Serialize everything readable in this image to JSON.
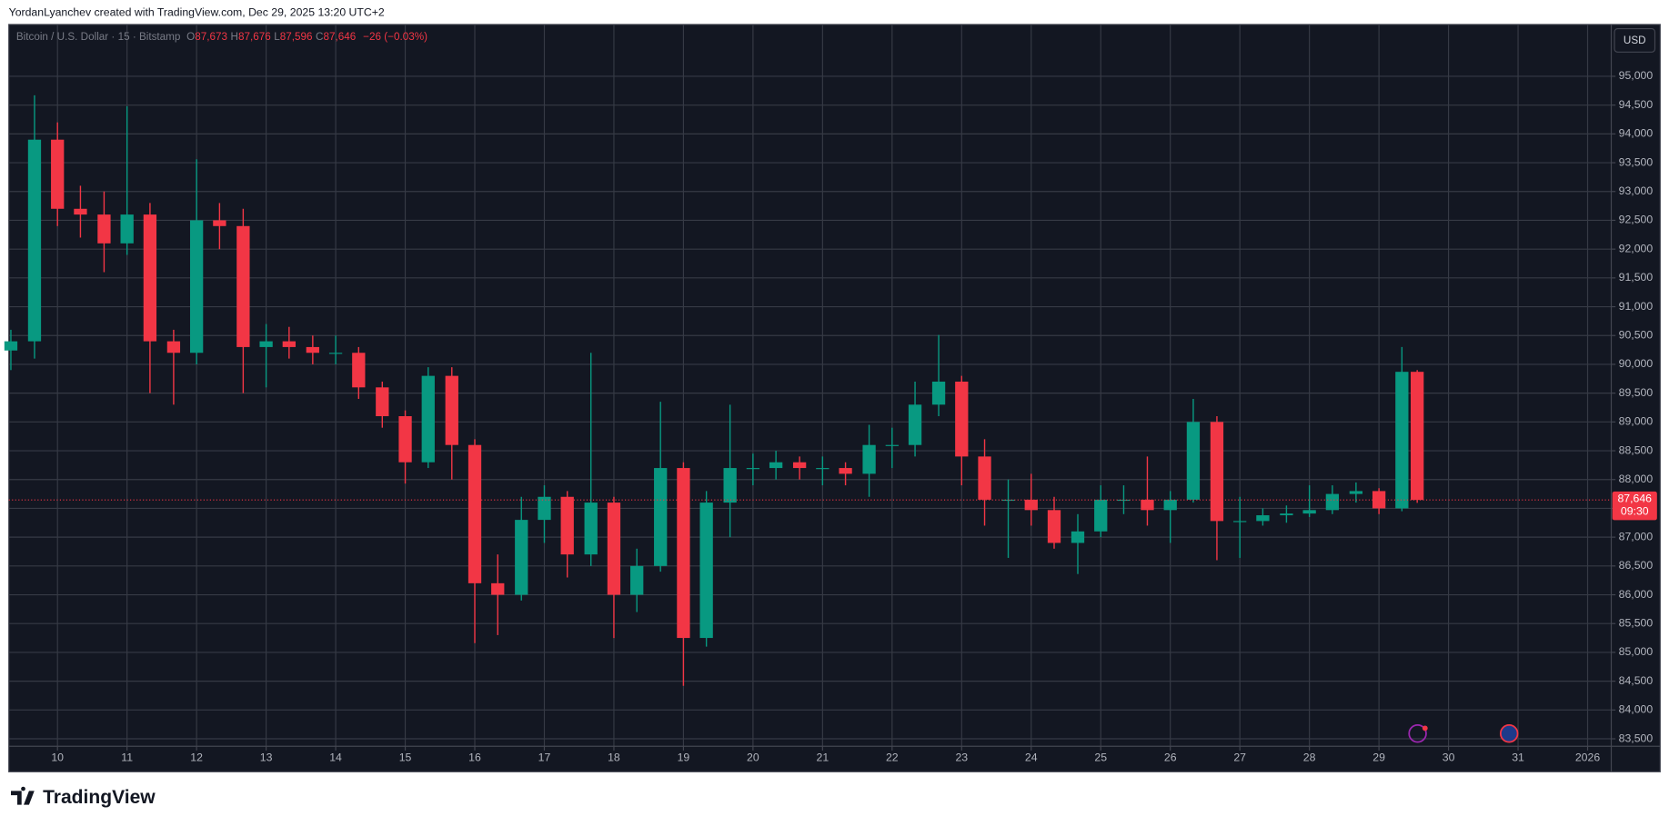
{
  "watermark": "YordanLyanchev created with TradingView.com, Dec 29, 2025 13:20 UTC+2",
  "brand": "TradingView",
  "currency": "USD",
  "chart_data": {
    "type": "candlestick",
    "symbol": "Bitcoin / U.S. Dollar · 15 · Bitstamp",
    "ohlc_legend": [
      {
        "label": "O",
        "value": "87,673"
      },
      {
        "label": "H",
        "value": "87,676"
      },
      {
        "label": "L",
        "value": "87,596"
      },
      {
        "label": "C",
        "value": "87,646"
      }
    ],
    "change": "−26 (−0.03%)",
    "up_color": "#089981",
    "down_color": "#f23645",
    "x": [
      9.33,
      9.67,
      10.0,
      10.33,
      10.67,
      11.0,
      11.33,
      11.67,
      12.0,
      12.33,
      12.67,
      13.0,
      13.33,
      13.67,
      14.0,
      14.33,
      14.67,
      15.0,
      15.33,
      15.67,
      16.0,
      16.33,
      16.67,
      17.0,
      17.33,
      17.67,
      18.0,
      18.33,
      18.67,
      19.0,
      19.33,
      19.67,
      20.0,
      20.33,
      20.67,
      21.0,
      21.33,
      21.67,
      22.0,
      22.33,
      22.67,
      23.0,
      23.33,
      23.67,
      24.0,
      24.33,
      24.67,
      25.0,
      25.33,
      25.67,
      26.0,
      26.33,
      26.67,
      27.0,
      27.33,
      27.67,
      28.0,
      28.33,
      28.67,
      29.0,
      29.33,
      29.55
    ],
    "open": [
      90240,
      90400,
      93900,
      92700,
      92600,
      92100,
      92600,
      90400,
      90200,
      92500,
      92400,
      90300,
      90400,
      90300,
      90200,
      90200,
      89600,
      89100,
      88300,
      89800,
      88600,
      86200,
      86000,
      87300,
      87700,
      86700,
      87600,
      86000,
      86500,
      88200,
      85250,
      87600,
      88200,
      88200,
      88300,
      88200,
      88200,
      88100,
      88600,
      88600,
      89300,
      89700,
      88400,
      87650,
      87650,
      87470,
      86900,
      87100,
      87650,
      87650,
      87470,
      87650,
      89000,
      87280,
      87280,
      87380,
      87410,
      87470,
      87750,
      87800,
      87500,
      89870
    ],
    "high": [
      90600,
      94670,
      94200,
      93100,
      93000,
      94480,
      92800,
      90600,
      93560,
      92800,
      92700,
      90700,
      90650,
      90500,
      90500,
      90300,
      89700,
      89200,
      89950,
      89950,
      88700,
      86700,
      87700,
      87900,
      87800,
      90200,
      87700,
      86800,
      89350,
      88300,
      87800,
      89300,
      88450,
      88500,
      88400,
      88400,
      88300,
      88950,
      88900,
      89700,
      90510,
      89800,
      88700,
      88000,
      88100,
      87700,
      87400,
      87900,
      87900,
      88400,
      87800,
      89400,
      89100,
      87700,
      87500,
      87550,
      87900,
      87900,
      87950,
      87850,
      90300,
      89900
    ],
    "low": [
      89900,
      90100,
      92400,
      92200,
      91600,
      91900,
      89500,
      89300,
      90000,
      92000,
      89500,
      89600,
      90100,
      90000,
      90000,
      89400,
      88900,
      87930,
      88200,
      88000,
      85160,
      85300,
      85900,
      86900,
      86300,
      86500,
      85250,
      85700,
      86400,
      84420,
      85100,
      87000,
      87900,
      88000,
      88000,
      87900,
      87900,
      87700,
      88200,
      88400,
      89100,
      87900,
      87200,
      86640,
      87200,
      86800,
      86360,
      87000,
      87400,
      87200,
      86900,
      87600,
      86600,
      86640,
      87200,
      87250,
      87350,
      87400,
      87600,
      87400,
      87450,
      87596
    ],
    "close": [
      90400,
      93900,
      92700,
      92600,
      92100,
      92600,
      90400,
      90200,
      92500,
      92400,
      90300,
      90400,
      90300,
      90200,
      90200,
      89600,
      89100,
      88300,
      89800,
      88600,
      86200,
      86000,
      87300,
      87700,
      86700,
      87600,
      86000,
      86500,
      88200,
      85250,
      87600,
      88200,
      88200,
      88300,
      88200,
      88200,
      88100,
      88600,
      88600,
      89300,
      89700,
      88400,
      87650,
      87650,
      87470,
      86900,
      87100,
      87650,
      87650,
      87470,
      87650,
      89000,
      87280,
      87280,
      87380,
      87410,
      87470,
      87750,
      87800,
      87500,
      89870,
      87646
    ],
    "last_price": {
      "value": 87646,
      "label": "87,646"
    },
    "countdown": "09:30",
    "xlim": [
      9.3,
      32.34
    ],
    "ylim": [
      83370,
      95900
    ],
    "xticks": [
      10,
      11,
      12,
      13,
      14,
      15,
      16,
      17,
      18,
      19,
      20,
      21,
      22,
      23,
      24,
      25,
      26,
      27,
      28,
      29,
      30,
      31,
      {
        "value": 32,
        "label": "2026"
      }
    ],
    "yticks": [
      {
        "value": 83500,
        "label": "83,500"
      },
      {
        "value": 84000,
        "label": "84,000"
      },
      {
        "value": 84500,
        "label": "84,500"
      },
      {
        "value": 85000,
        "label": "85,000"
      },
      {
        "value": 85500,
        "label": "85,500"
      },
      {
        "value": 86000,
        "label": "86,000"
      },
      {
        "value": 86500,
        "label": "86,500"
      },
      {
        "value": 87000,
        "label": "87,000"
      },
      {
        "value": 87500,
        "label": "87,500"
      },
      {
        "value": 88000,
        "label": "88,000"
      },
      {
        "value": 88500,
        "label": "88,500"
      },
      {
        "value": 89000,
        "label": "89,000"
      },
      {
        "value": 89500,
        "label": "89,500"
      },
      {
        "value": 90000,
        "label": "90,000"
      },
      {
        "value": 90500,
        "label": "90,500"
      },
      {
        "value": 91000,
        "label": "91,000"
      },
      {
        "value": 91500,
        "label": "91,500"
      },
      {
        "value": 92000,
        "label": "92,000"
      },
      {
        "value": 92500,
        "label": "92,500"
      },
      {
        "value": 93000,
        "label": "93,000"
      },
      {
        "value": 93500,
        "label": "93,500"
      },
      {
        "value": 94000,
        "label": "94,000"
      },
      {
        "value": 94500,
        "label": "94,500"
      },
      {
        "value": 95000,
        "label": "95,000"
      }
    ],
    "grid": true
  }
}
